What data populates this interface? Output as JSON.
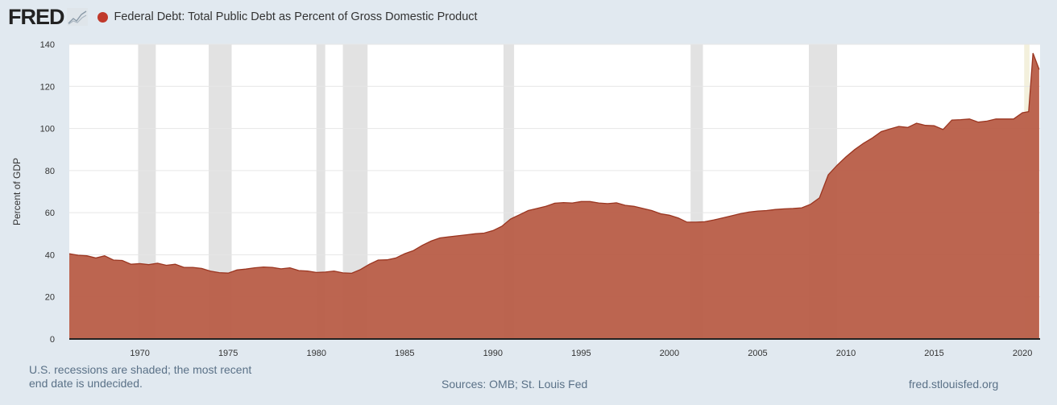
{
  "header": {
    "logo": "FRED",
    "logo_icon": "line-chart-icon",
    "title": "Federal Debt: Total Public Debt as Percent of Gross Domestic Product"
  },
  "colors": {
    "fill": "#b85d47",
    "line": "#9a3520",
    "recession": "#e2e2e2",
    "dot": "#c0392b",
    "background": "#e1e9f0"
  },
  "footer": {
    "note_line1": "U.S. recessions are shaded; the most recent",
    "note_line2": "end date is undecided.",
    "sources": "Sources: OMB; St. Louis Fed",
    "site": "fred.stlouisfed.org"
  },
  "chart_data": {
    "type": "area",
    "title": "Federal Debt: Total Public Debt as Percent of Gross Domestic Product",
    "xlabel": "",
    "ylabel": "Percent of GDP",
    "xlim": [
      1966,
      2021
    ],
    "ylim": [
      0,
      140
    ],
    "yticks": [
      0,
      20,
      40,
      60,
      80,
      100,
      120,
      140
    ],
    "xticks": [
      1970,
      1975,
      1980,
      1985,
      1990,
      1995,
      2000,
      2005,
      2010,
      2015,
      2020
    ],
    "grid": true,
    "recessions": [
      [
        1969.9,
        1970.9
      ],
      [
        1973.9,
        1975.2
      ],
      [
        1980.0,
        1980.5
      ],
      [
        1981.5,
        1982.9
      ],
      [
        1990.6,
        1991.2
      ],
      [
        2001.2,
        2001.9
      ],
      [
        2007.9,
        2009.5
      ],
      [
        2020.1,
        2020.4
      ]
    ],
    "x": [
      1966,
      1966.5,
      1967,
      1967.5,
      1968,
      1968.5,
      1969,
      1969.5,
      1970,
      1970.5,
      1971,
      1971.5,
      1972,
      1972.5,
      1973,
      1973.5,
      1974,
      1974.5,
      1975,
      1975.5,
      1976,
      1976.5,
      1977,
      1977.5,
      1978,
      1978.5,
      1979,
      1979.5,
      1980,
      1980.5,
      1981,
      1981.5,
      1982,
      1982.5,
      1983,
      1983.5,
      1984,
      1984.5,
      1985,
      1985.5,
      1986,
      1986.5,
      1987,
      1987.5,
      1988,
      1988.5,
      1989,
      1989.5,
      1990,
      1990.5,
      1991,
      1991.5,
      1992,
      1992.5,
      1993,
      1993.5,
      1994,
      1994.5,
      1995,
      1995.5,
      1996,
      1996.5,
      1997,
      1997.5,
      1998,
      1998.5,
      1999,
      1999.5,
      2000,
      2000.5,
      2001,
      2001.5,
      2002,
      2002.5,
      2003,
      2003.5,
      2004,
      2004.5,
      2005,
      2005.5,
      2006,
      2006.5,
      2007,
      2007.5,
      2008,
      2008.5,
      2009,
      2009.5,
      2010,
      2010.5,
      2011,
      2011.5,
      2012,
      2012.5,
      2013,
      2013.5,
      2014,
      2014.5,
      2015,
      2015.5,
      2016,
      2016.5,
      2017,
      2017.5,
      2018,
      2018.5,
      2019,
      2019.5,
      2020,
      2020.35,
      2020.6,
      2020.95
    ],
    "values": [
      40.5,
      39.8,
      39.5,
      38.5,
      39.5,
      37.5,
      37.3,
      35.5,
      35.8,
      35.3,
      36,
      35,
      35.5,
      34,
      34,
      33.5,
      32.2,
      31.5,
      31.3,
      32.8,
      33.2,
      33.8,
      34.2,
      34,
      33.3,
      33.8,
      32.5,
      32.3,
      31.6,
      31.8,
      32.3,
      31.4,
      31.2,
      33,
      35.5,
      37.5,
      37.6,
      38.5,
      40.5,
      42,
      44.5,
      46.5,
      48,
      48.5,
      49,
      49.5,
      50,
      50.3,
      51.5,
      53.5,
      57,
      59,
      61,
      62,
      63,
      64.5,
      64.8,
      64.6,
      65.3,
      65.3,
      64.6,
      64.3,
      64.7,
      63.5,
      63,
      62,
      61,
      59.5,
      58.8,
      57.5,
      55.5,
      55.5,
      55.7,
      56.5,
      57.5,
      58.5,
      59.5,
      60.3,
      60.8,
      61,
      61.5,
      61.8,
      62,
      62.3,
      64,
      67,
      78,
      82.5,
      86.5,
      90,
      93,
      95.5,
      98.5,
      99.8,
      101,
      100.5,
      102.5,
      101.5,
      101.3,
      99.5,
      104,
      104.2,
      104.5,
      103,
      103.5,
      104.5,
      104.5,
      104.5,
      107.5,
      108,
      135.8,
      128
    ]
  }
}
